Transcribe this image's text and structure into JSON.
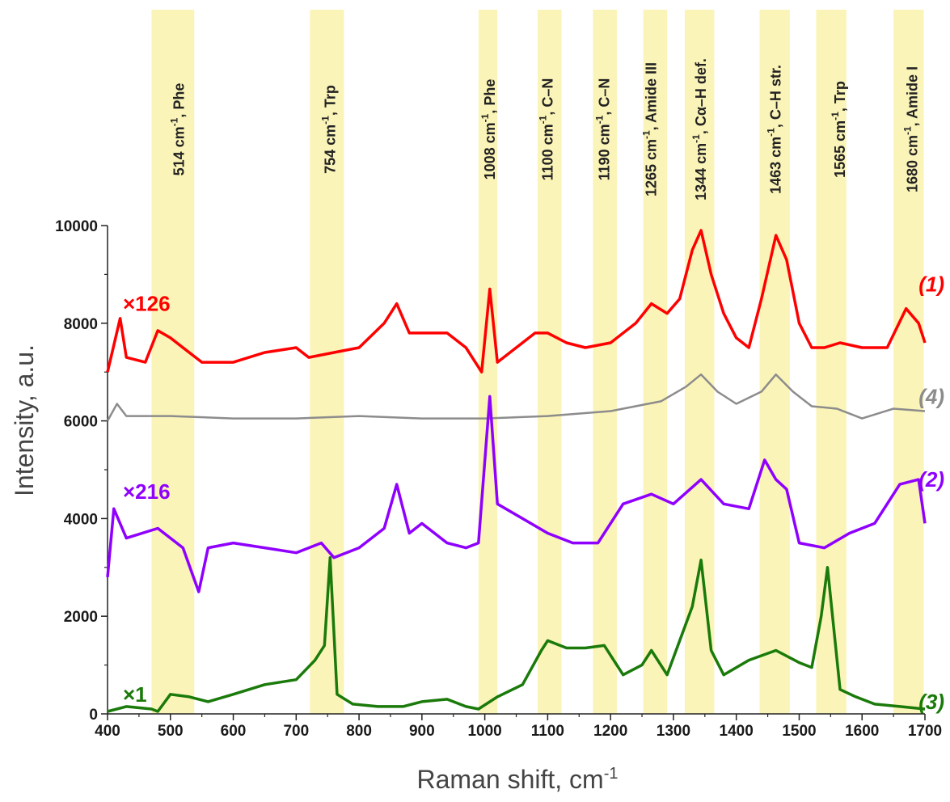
{
  "chart_data": {
    "type": "line",
    "xlabel": "Raman shift, cm",
    "xlabel_sup": "-1",
    "ylabel": "Intensity, a.u.",
    "xlim": [
      400,
      1700
    ],
    "ylim": [
      0,
      10000
    ],
    "x_ticks": [
      400,
      500,
      600,
      700,
      800,
      900,
      1000,
      1100,
      1200,
      1300,
      1400,
      1500,
      1600,
      1700
    ],
    "y_ticks": [
      0,
      2000,
      4000,
      6000,
      8000,
      10000
    ],
    "grid": false,
    "bands": [
      {
        "center": 514,
        "from": 470,
        "to": 538,
        "pre": "514 cm",
        "sup": "-1",
        "post": ", Phe"
      },
      {
        "center": 754,
        "from": 722,
        "to": 776,
        "pre": "754 cm",
        "sup": "-1",
        "post": ", Trp"
      },
      {
        "center": 1008,
        "from": 990,
        "to": 1020,
        "pre": "1008 cm",
        "sup": "-1",
        "post": ", Phe"
      },
      {
        "center": 1100,
        "from": 1084,
        "to": 1122,
        "pre": "1100 cm",
        "sup": "-1",
        "post": ", C–N"
      },
      {
        "center": 1190,
        "from": 1172,
        "to": 1210,
        "pre": "1190 cm",
        "sup": "-1",
        "post": ", C–N"
      },
      {
        "center": 1265,
        "from": 1252,
        "to": 1290,
        "pre": "1265 cm",
        "sup": "-1",
        "post": ", Amide III"
      },
      {
        "center": 1344,
        "from": 1318,
        "to": 1365,
        "pre": "1344 cm",
        "sup": "-1",
        "post": ", Cα–H def."
      },
      {
        "center": 1463,
        "from": 1437,
        "to": 1485,
        "pre": "1463 cm",
        "sup": "-1",
        "post": ", C–H str."
      },
      {
        "center": 1565,
        "from": 1527,
        "to": 1575,
        "pre": "1565 cm",
        "sup": "-1",
        "post": ", Trp"
      },
      {
        "center": 1680,
        "from": 1650,
        "to": 1698,
        "pre": "1680 cm",
        "sup": "-1",
        "post": ", Amide I"
      }
    ],
    "band_color": "#fbf4b8",
    "series": [
      {
        "name": "(1)",
        "scale_label": "×126",
        "color": "#ff0000",
        "x": [
          400,
          420,
          430,
          460,
          480,
          500,
          520,
          550,
          600,
          650,
          700,
          720,
          760,
          800,
          840,
          860,
          880,
          900,
          940,
          970,
          995,
          1008,
          1020,
          1050,
          1080,
          1100,
          1130,
          1160,
          1200,
          1240,
          1265,
          1290,
          1310,
          1330,
          1344,
          1360,
          1380,
          1400,
          1420,
          1440,
          1463,
          1480,
          1500,
          1520,
          1540,
          1565,
          1600,
          1640,
          1670,
          1690,
          1700
        ],
        "y": [
          7000,
          8100,
          7300,
          7200,
          7850,
          7700,
          7500,
          7200,
          7200,
          7400,
          7500,
          7300,
          7400,
          7500,
          8000,
          8400,
          7800,
          7800,
          7800,
          7500,
          7000,
          8700,
          7200,
          7500,
          7800,
          7800,
          7600,
          7500,
          7600,
          8000,
          8400,
          8200,
          8500,
          9500,
          9900,
          9000,
          8200,
          7700,
          7500,
          8500,
          9800,
          9300,
          8000,
          7500,
          7500,
          7600,
          7500,
          7500,
          8300,
          8000,
          7600
        ]
      },
      {
        "name": "(4)",
        "scale_label": "",
        "color": "#8c8c8c",
        "x": [
          400,
          415,
          430,
          500,
          600,
          700,
          800,
          900,
          1000,
          1100,
          1200,
          1280,
          1320,
          1344,
          1370,
          1400,
          1440,
          1463,
          1490,
          1520,
          1560,
          1600,
          1650,
          1700
        ],
        "y": [
          6000,
          6350,
          6100,
          6100,
          6050,
          6050,
          6100,
          6050,
          6050,
          6100,
          6200,
          6400,
          6700,
          6950,
          6600,
          6350,
          6600,
          6950,
          6600,
          6300,
          6250,
          6050,
          6250,
          6200
        ]
      },
      {
        "name": "(2)",
        "scale_label": "×216",
        "color": "#8f00ff",
        "x": [
          400,
          410,
          430,
          480,
          520,
          545,
          560,
          600,
          650,
          700,
          740,
          760,
          800,
          840,
          860,
          880,
          900,
          940,
          970,
          990,
          1008,
          1020,
          1060,
          1100,
          1140,
          1180,
          1220,
          1265,
          1300,
          1344,
          1380,
          1420,
          1445,
          1463,
          1480,
          1500,
          1540,
          1580,
          1620,
          1660,
          1690,
          1700
        ],
        "y": [
          2800,
          4200,
          3600,
          3800,
          3400,
          2500,
          3400,
          3500,
          3400,
          3300,
          3500,
          3200,
          3400,
          3800,
          4700,
          3700,
          3900,
          3500,
          3400,
          3500,
          6500,
          4300,
          4000,
          3700,
          3500,
          3500,
          4300,
          4500,
          4300,
          4800,
          4300,
          4200,
          5200,
          4800,
          4600,
          3500,
          3400,
          3700,
          3900,
          4700,
          4800,
          3900
        ]
      },
      {
        "name": "(3)",
        "scale_label": "×1",
        "color": "#1a7a0a",
        "x": [
          400,
          430,
          470,
          480,
          500,
          530,
          560,
          600,
          650,
          700,
          730,
          745,
          754,
          765,
          790,
          830,
          870,
          900,
          940,
          970,
          990,
          1020,
          1060,
          1090,
          1100,
          1130,
          1160,
          1190,
          1220,
          1250,
          1265,
          1290,
          1310,
          1330,
          1344,
          1360,
          1380,
          1420,
          1463,
          1500,
          1520,
          1535,
          1545,
          1565,
          1590,
          1620,
          1660,
          1700
        ],
        "y": [
          50,
          150,
          100,
          50,
          400,
          350,
          250,
          400,
          600,
          700,
          1100,
          1400,
          3200,
          400,
          200,
          150,
          150,
          250,
          300,
          150,
          100,
          350,
          600,
          1300,
          1500,
          1350,
          1350,
          1400,
          800,
          1000,
          1300,
          800,
          1500,
          2200,
          3150,
          1300,
          800,
          1100,
          1300,
          1050,
          950,
          2000,
          3000,
          500,
          350,
          200,
          150,
          100
        ]
      }
    ]
  }
}
